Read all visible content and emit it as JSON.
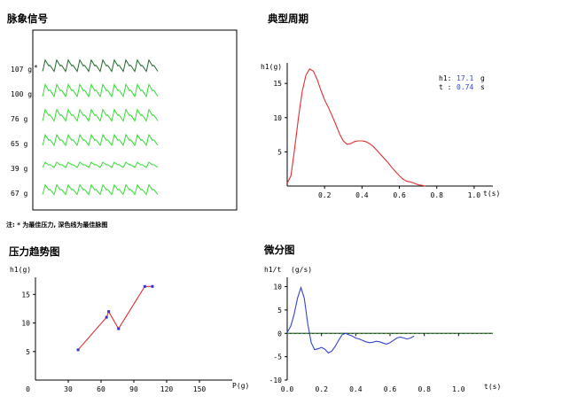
{
  "titles": {
    "pulse": "脉象信号",
    "period": "典型周期",
    "pressure": "压力趋势图",
    "diff": "微分图"
  },
  "note": "注: * 为最佳压力, 深色线为最佳脉图",
  "colors": {
    "best_trace": "#1f6b2a",
    "trace": "#33dd33",
    "period_line": "#e03030",
    "pressure_line": "#e03030",
    "pressure_marker": "#3333cc",
    "diff_line": "#3344cc",
    "zero_line": "#229922"
  },
  "pulse_panel": {
    "traces": [
      {
        "label": "107 g",
        "best": true
      },
      {
        "label": "100 g",
        "best": false
      },
      {
        "label": "76 g",
        "best": false
      },
      {
        "label": "65 g",
        "best": false
      },
      {
        "label": "39 g",
        "best": false
      },
      {
        "label": "67 g",
        "best": false
      }
    ]
  },
  "chart_data": [
    {
      "type": "line",
      "name": "period",
      "ylabel": "h1(g)",
      "xlabel": "t(s)",
      "xlim": [
        0,
        1.1
      ],
      "ylim": [
        0,
        18
      ],
      "xticks": [
        0.2,
        0.4,
        0.6,
        0.8,
        1.0
      ],
      "yticks": [
        5,
        10,
        15
      ],
      "annotation": {
        "h1_label": "h1:",
        "h1_value": "17.1",
        "h1_unit": "g",
        "t_label": "t :",
        "t_value": "0.74",
        "t_unit": "s"
      },
      "x": [
        0.0,
        0.02,
        0.04,
        0.06,
        0.08,
        0.1,
        0.12,
        0.14,
        0.16,
        0.18,
        0.2,
        0.22,
        0.24,
        0.26,
        0.28,
        0.3,
        0.32,
        0.34,
        0.36,
        0.38,
        0.4,
        0.42,
        0.44,
        0.46,
        0.48,
        0.5,
        0.52,
        0.54,
        0.56,
        0.58,
        0.6,
        0.62,
        0.64,
        0.66,
        0.68,
        0.7,
        0.72,
        0.74
      ],
      "y": [
        0.4,
        1.5,
        5.5,
        10.0,
        13.8,
        16.2,
        17.1,
        16.8,
        15.6,
        14.0,
        12.6,
        11.5,
        10.3,
        9.0,
        7.6,
        6.6,
        6.1,
        6.2,
        6.5,
        6.6,
        6.6,
        6.5,
        6.2,
        5.8,
        5.2,
        4.6,
        4.0,
        3.4,
        2.7,
        2.1,
        1.5,
        1.0,
        0.7,
        0.6,
        0.4,
        0.2,
        0.1,
        0.0
      ]
    },
    {
      "type": "line",
      "name": "pressure",
      "ylabel": "h1(g)",
      "xlabel": "P(g)",
      "xlim": [
        0,
        180
      ],
      "ylim": [
        0,
        18
      ],
      "xticks": [
        30,
        60,
        90,
        120,
        150
      ],
      "yticks": [
        5,
        10,
        15
      ],
      "x": [
        39,
        65,
        67,
        76,
        100,
        107
      ],
      "y": [
        5.3,
        11.0,
        12.0,
        9.0,
        16.4,
        16.4
      ]
    },
    {
      "type": "line",
      "name": "diff",
      "ylabel": "h1/t",
      "yunit": "(g/s)",
      "xlabel": "t(s)",
      "xlim": [
        0,
        1.2
      ],
      "ylim": [
        -10,
        12
      ],
      "xticks": [
        0,
        0.2,
        0.4,
        0.6,
        0.8,
        1.0
      ],
      "yticks": [
        10,
        5,
        0,
        -5,
        -10
      ],
      "x": [
        0.0,
        0.02,
        0.04,
        0.06,
        0.08,
        0.1,
        0.12,
        0.14,
        0.16,
        0.18,
        0.2,
        0.22,
        0.24,
        0.26,
        0.28,
        0.3,
        0.32,
        0.34,
        0.36,
        0.38,
        0.4,
        0.42,
        0.44,
        0.46,
        0.48,
        0.5,
        0.52,
        0.54,
        0.56,
        0.58,
        0.6,
        0.62,
        0.64,
        0.66,
        0.68,
        0.7,
        0.72,
        0.74
      ],
      "y": [
        0.2,
        1.5,
        4.0,
        7.5,
        9.8,
        7.5,
        2.0,
        -2.0,
        -3.5,
        -3.3,
        -3.0,
        -3.4,
        -4.2,
        -3.8,
        -2.8,
        -1.5,
        -0.3,
        0.0,
        -0.3,
        -0.6,
        -1.0,
        -1.2,
        -1.5,
        -1.8,
        -2.0,
        -1.9,
        -1.7,
        -1.8,
        -2.1,
        -2.3,
        -2.0,
        -1.5,
        -1.0,
        -0.8,
        -1.0,
        -1.2,
        -1.0,
        -0.6
      ]
    }
  ]
}
